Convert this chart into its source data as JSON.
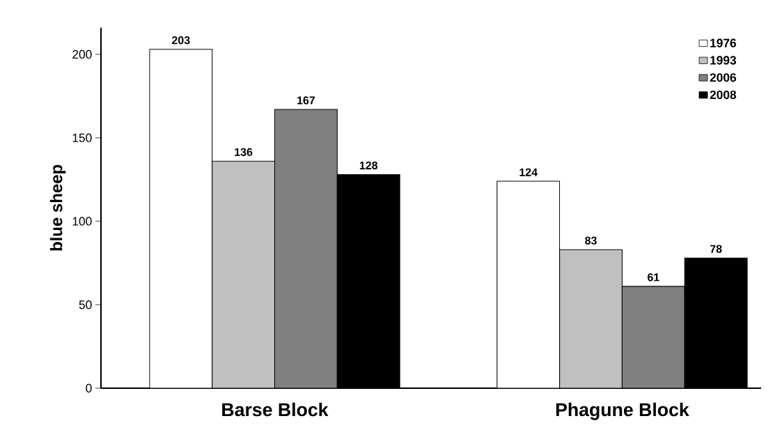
{
  "chart_data": {
    "type": "bar",
    "ylabel": "blue sheep",
    "categories": [
      "Barse Block",
      "Phagune Block"
    ],
    "series": [
      {
        "name": "1976",
        "color": "#ffffff",
        "values": [
          203,
          124
        ]
      },
      {
        "name": "1993",
        "color": "#c0c0c0",
        "values": [
          136,
          83
        ]
      },
      {
        "name": "2006",
        "color": "#808080",
        "values": [
          167,
          61
        ]
      },
      {
        "name": "2008",
        "color": "#000000",
        "values": [
          128,
          78
        ]
      }
    ],
    "ylim": [
      0,
      216
    ],
    "yticks": [
      0,
      50,
      100,
      150,
      200
    ],
    "data_labels": true,
    "legend": "top right",
    "grid": false
  }
}
